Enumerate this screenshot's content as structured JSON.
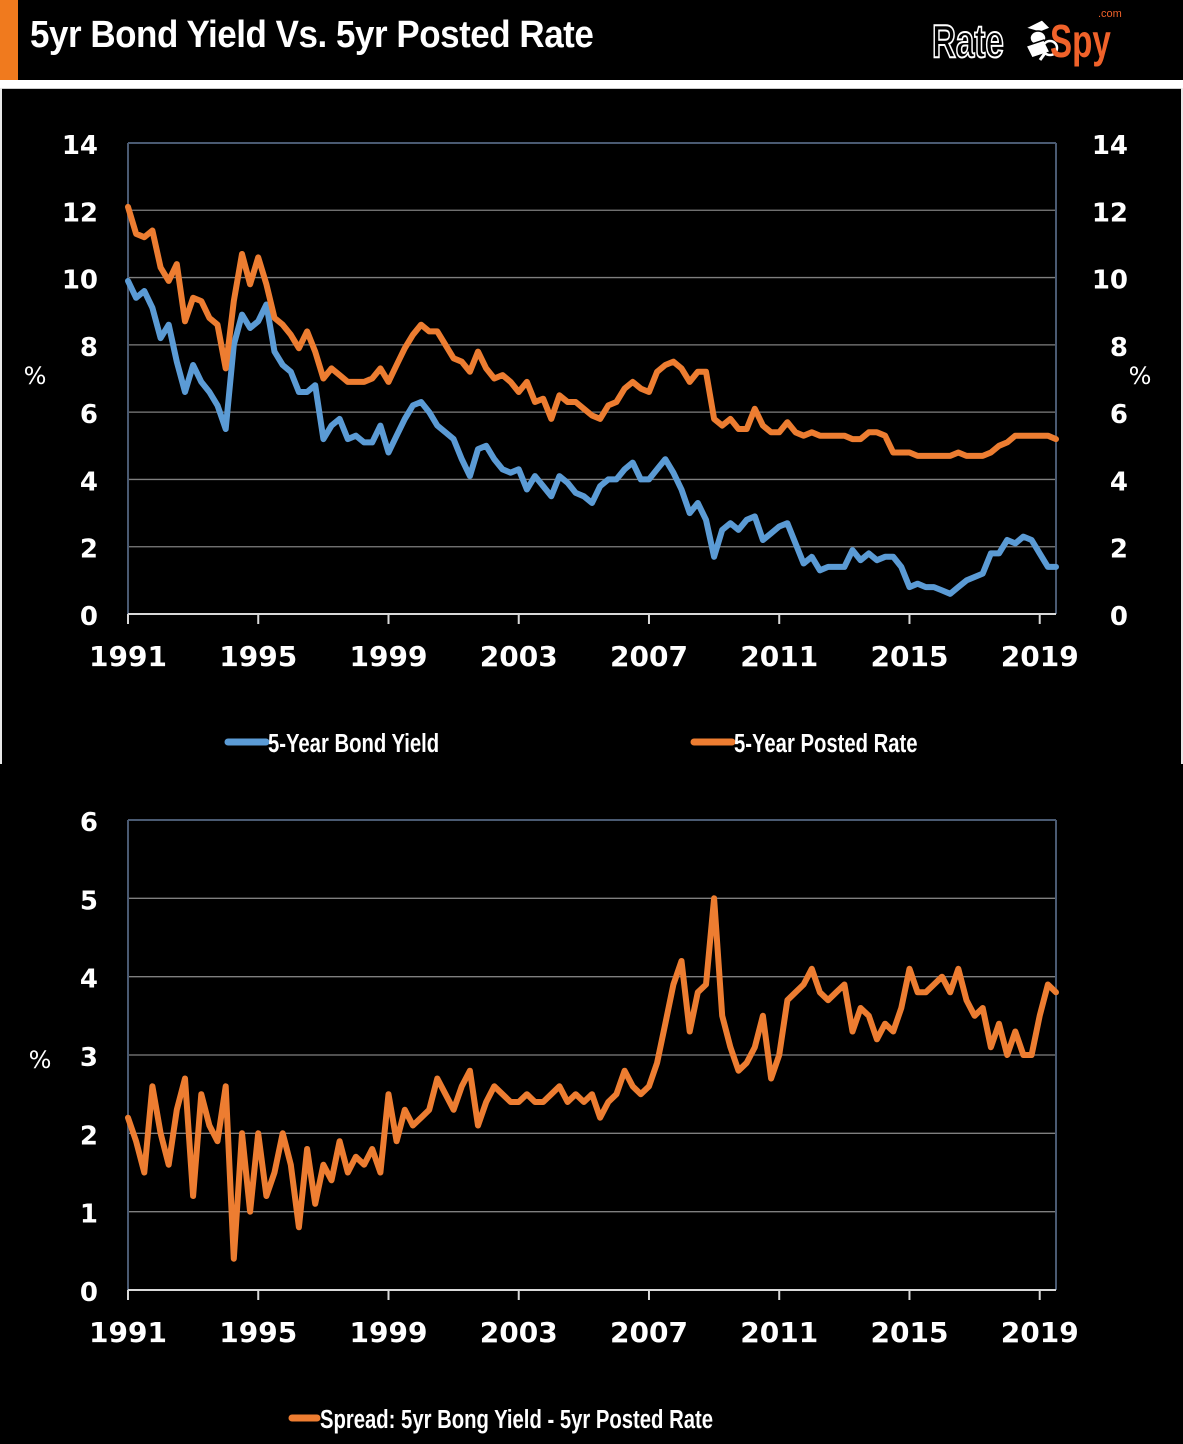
{
  "header": {
    "title": "5yr Bond Yield Vs. 5yr Posted Rate",
    "logo": {
      "part1": "Rate",
      "part2": "Spy",
      "suffix": ".com",
      "icon": "spy-magnifier-icon"
    },
    "accent_color": "#f07a1e"
  },
  "chart_data": [
    {
      "type": "line",
      "title": "",
      "xlabel": "",
      "ylabel": "%",
      "ylabel_right": "%",
      "ylim": [
        0,
        14
      ],
      "yticks": [
        "0",
        "2",
        "4",
        "6",
        "8",
        "10",
        "12",
        "14"
      ],
      "xlim": [
        1991,
        2019.5
      ],
      "xticks": [
        "1991",
        "1995",
        "1999",
        "2003",
        "2007",
        "2011",
        "2015",
        "2019"
      ],
      "grid": true,
      "legend_position": "bottom",
      "series": [
        {
          "name": "5-Year Bond Yield",
          "color": "#5b9bd5",
          "x": [
            1991.0,
            1991.25,
            1991.5,
            1991.75,
            1992.0,
            1992.25,
            1992.5,
            1992.75,
            1993.0,
            1993.25,
            1993.5,
            1993.75,
            1994.0,
            1994.25,
            1994.5,
            1994.75,
            1995.0,
            1995.25,
            1995.5,
            1995.75,
            1996.0,
            1996.25,
            1996.5,
            1996.75,
            1997.0,
            1997.25,
            1997.5,
            1997.75,
            1998.0,
            1998.25,
            1998.5,
            1998.75,
            1999.0,
            1999.25,
            1999.5,
            1999.75,
            2000.0,
            2000.25,
            2000.5,
            2000.75,
            2001.0,
            2001.25,
            2001.5,
            2001.75,
            2002.0,
            2002.25,
            2002.5,
            2002.75,
            2003.0,
            2003.25,
            2003.5,
            2003.75,
            2004.0,
            2004.25,
            2004.5,
            2004.75,
            2005.0,
            2005.25,
            2005.5,
            2005.75,
            2006.0,
            2006.25,
            2006.5,
            2006.75,
            2007.0,
            2007.25,
            2007.5,
            2007.75,
            2008.0,
            2008.25,
            2008.5,
            2008.75,
            2009.0,
            2009.25,
            2009.5,
            2009.75,
            2010.0,
            2010.25,
            2010.5,
            2010.75,
            2011.0,
            2011.25,
            2011.5,
            2011.75,
            2012.0,
            2012.25,
            2012.5,
            2012.75,
            2013.0,
            2013.25,
            2013.5,
            2013.75,
            2014.0,
            2014.25,
            2014.5,
            2014.75,
            2015.0,
            2015.25,
            2015.5,
            2015.75,
            2016.0,
            2016.25,
            2016.5,
            2016.75,
            2017.0,
            2017.25,
            2017.5,
            2017.75,
            2018.0,
            2018.25,
            2018.5,
            2018.75,
            2019.0,
            2019.25,
            2019.5
          ],
          "values": [
            9.9,
            9.4,
            9.6,
            9.1,
            8.2,
            8.6,
            7.5,
            6.6,
            7.4,
            6.9,
            6.6,
            6.2,
            5.5,
            8.0,
            8.9,
            8.5,
            8.7,
            9.2,
            7.8,
            7.4,
            7.2,
            6.6,
            6.6,
            6.8,
            5.2,
            5.6,
            5.8,
            5.2,
            5.3,
            5.1,
            5.1,
            5.6,
            4.8,
            5.3,
            5.8,
            6.2,
            6.3,
            6.0,
            5.6,
            5.4,
            5.2,
            4.6,
            4.1,
            4.9,
            5.0,
            4.6,
            4.3,
            4.2,
            4.3,
            3.7,
            4.1,
            3.8,
            3.5,
            4.1,
            3.9,
            3.6,
            3.5,
            3.3,
            3.8,
            4.0,
            4.0,
            4.3,
            4.5,
            4.0,
            4.0,
            4.3,
            4.6,
            4.2,
            3.7,
            3.0,
            3.3,
            2.8,
            1.7,
            2.5,
            2.7,
            2.5,
            2.8,
            2.9,
            2.2,
            2.4,
            2.6,
            2.7,
            2.1,
            1.5,
            1.7,
            1.3,
            1.4,
            1.4,
            1.4,
            1.9,
            1.6,
            1.8,
            1.6,
            1.7,
            1.7,
            1.4,
            0.8,
            0.9,
            0.8,
            0.8,
            0.7,
            0.6,
            0.8,
            1.0,
            1.1,
            1.2,
            1.8,
            1.8,
            2.2,
            2.1,
            2.3,
            2.2,
            1.8,
            1.4,
            1.4
          ]
        },
        {
          "name": "5-Year Posted Rate",
          "color": "#ed7d31",
          "x": [
            1991.0,
            1991.25,
            1991.5,
            1991.75,
            1992.0,
            1992.25,
            1992.5,
            1992.75,
            1993.0,
            1993.25,
            1993.5,
            1993.75,
            1994.0,
            1994.25,
            1994.5,
            1994.75,
            1995.0,
            1995.25,
            1995.5,
            1995.75,
            1996.0,
            1996.25,
            1996.5,
            1996.75,
            1997.0,
            1997.25,
            1997.5,
            1997.75,
            1998.0,
            1998.25,
            1998.5,
            1998.75,
            1999.0,
            1999.25,
            1999.5,
            1999.75,
            2000.0,
            2000.25,
            2000.5,
            2000.75,
            2001.0,
            2001.25,
            2001.5,
            2001.75,
            2002.0,
            2002.25,
            2002.5,
            2002.75,
            2003.0,
            2003.25,
            2003.5,
            2003.75,
            2004.0,
            2004.25,
            2004.5,
            2004.75,
            2005.0,
            2005.25,
            2005.5,
            2005.75,
            2006.0,
            2006.25,
            2006.5,
            2006.75,
            2007.0,
            2007.25,
            2007.5,
            2007.75,
            2008.0,
            2008.25,
            2008.5,
            2008.75,
            2009.0,
            2009.25,
            2009.5,
            2009.75,
            2010.0,
            2010.25,
            2010.5,
            2010.75,
            2011.0,
            2011.25,
            2011.5,
            2011.75,
            2012.0,
            2012.25,
            2012.5,
            2012.75,
            2013.0,
            2013.25,
            2013.5,
            2013.75,
            2014.0,
            2014.25,
            2014.5,
            2014.75,
            2015.0,
            2015.25,
            2015.5,
            2015.75,
            2016.0,
            2016.25,
            2016.5,
            2016.75,
            2017.0,
            2017.25,
            2017.5,
            2017.75,
            2018.0,
            2018.25,
            2018.5,
            2018.75,
            2019.0,
            2019.25,
            2019.5
          ],
          "values": [
            12.1,
            11.3,
            11.2,
            11.4,
            10.3,
            9.9,
            10.4,
            8.7,
            9.4,
            9.3,
            8.8,
            8.6,
            7.3,
            9.3,
            10.7,
            9.8,
            10.6,
            9.8,
            8.8,
            8.6,
            8.3,
            7.9,
            8.4,
            7.8,
            7.0,
            7.3,
            7.1,
            6.9,
            6.9,
            6.9,
            7.0,
            7.3,
            6.9,
            7.4,
            7.9,
            8.3,
            8.6,
            8.4,
            8.4,
            8.0,
            7.6,
            7.5,
            7.2,
            7.8,
            7.3,
            7.0,
            7.1,
            6.9,
            6.6,
            6.9,
            6.3,
            6.4,
            5.8,
            6.5,
            6.3,
            6.3,
            6.1,
            5.9,
            5.8,
            6.2,
            6.3,
            6.7,
            6.9,
            6.7,
            6.6,
            7.2,
            7.4,
            7.5,
            7.3,
            6.9,
            7.2,
            7.2,
            5.8,
            5.6,
            5.8,
            5.5,
            5.5,
            6.1,
            5.6,
            5.4,
            5.4,
            5.7,
            5.4,
            5.3,
            5.4,
            5.3,
            5.3,
            5.3,
            5.3,
            5.2,
            5.2,
            5.4,
            5.4,
            5.3,
            4.8,
            4.8,
            4.8,
            4.7,
            4.7,
            4.7,
            4.7,
            4.7,
            4.8,
            4.7,
            4.7,
            4.7,
            4.8,
            5.0,
            5.1,
            5.3,
            5.3,
            5.3,
            5.3,
            5.3,
            5.2
          ]
        }
      ]
    },
    {
      "type": "line",
      "title": "",
      "xlabel": "",
      "ylabel": "%",
      "ylim": [
        0,
        6
      ],
      "yticks": [
        "0",
        "1",
        "2",
        "3",
        "4",
        "5",
        "6"
      ],
      "xlim": [
        1991,
        2019.5
      ],
      "xticks": [
        "1991",
        "1995",
        "1999",
        "2003",
        "2007",
        "2011",
        "2015",
        "2019"
      ],
      "grid": true,
      "legend_position": "bottom",
      "series": [
        {
          "name": "Spread: 5yr Bong Yield - 5yr Posted Rate",
          "color": "#ed7d31",
          "x": [
            1991.0,
            1991.25,
            1991.5,
            1991.75,
            1992.0,
            1992.25,
            1992.5,
            1992.75,
            1993.0,
            1993.25,
            1993.5,
            1993.75,
            1994.0,
            1994.25,
            1994.5,
            1994.75,
            1995.0,
            1995.25,
            1995.5,
            1995.75,
            1996.0,
            1996.25,
            1996.5,
            1996.75,
            1997.0,
            1997.25,
            1997.5,
            1997.75,
            1998.0,
            1998.25,
            1998.5,
            1998.75,
            1999.0,
            1999.25,
            1999.5,
            1999.75,
            2000.0,
            2000.25,
            2000.5,
            2000.75,
            2001.0,
            2001.25,
            2001.5,
            2001.75,
            2002.0,
            2002.25,
            2002.5,
            2002.75,
            2003.0,
            2003.25,
            2003.5,
            2003.75,
            2004.0,
            2004.25,
            2004.5,
            2004.75,
            2005.0,
            2005.25,
            2005.5,
            2005.75,
            2006.0,
            2006.25,
            2006.5,
            2006.75,
            2007.0,
            2007.25,
            2007.5,
            2007.75,
            2008.0,
            2008.25,
            2008.5,
            2008.75,
            2009.0,
            2009.25,
            2009.5,
            2009.75,
            2010.0,
            2010.25,
            2010.5,
            2010.75,
            2011.0,
            2011.25,
            2011.5,
            2011.75,
            2012.0,
            2012.25,
            2012.5,
            2012.75,
            2013.0,
            2013.25,
            2013.5,
            2013.75,
            2014.0,
            2014.25,
            2014.5,
            2014.75,
            2015.0,
            2015.25,
            2015.5,
            2015.75,
            2016.0,
            2016.25,
            2016.5,
            2016.75,
            2017.0,
            2017.25,
            2017.5,
            2017.75,
            2018.0,
            2018.25,
            2018.5,
            2018.75,
            2019.0,
            2019.25,
            2019.5
          ],
          "values": [
            2.2,
            1.9,
            1.5,
            2.6,
            2.0,
            1.6,
            2.3,
            2.7,
            1.2,
            2.5,
            2.1,
            1.9,
            2.6,
            0.4,
            2.0,
            1.0,
            2.0,
            1.2,
            1.5,
            2.0,
            1.6,
            0.8,
            1.8,
            1.1,
            1.6,
            1.4,
            1.9,
            1.5,
            1.7,
            1.6,
            1.8,
            1.5,
            2.5,
            1.9,
            2.3,
            2.1,
            2.2,
            2.3,
            2.7,
            2.5,
            2.3,
            2.6,
            2.8,
            2.1,
            2.4,
            2.6,
            2.5,
            2.4,
            2.4,
            2.5,
            2.4,
            2.4,
            2.5,
            2.6,
            2.4,
            2.5,
            2.4,
            2.5,
            2.2,
            2.4,
            2.5,
            2.8,
            2.6,
            2.5,
            2.6,
            2.9,
            3.4,
            3.9,
            4.2,
            3.3,
            3.8,
            3.9,
            5.0,
            3.5,
            3.1,
            2.8,
            2.9,
            3.1,
            3.5,
            2.7,
            3.0,
            3.7,
            3.8,
            3.9,
            4.1,
            3.8,
            3.7,
            3.8,
            3.9,
            3.3,
            3.6,
            3.5,
            3.2,
            3.4,
            3.3,
            3.6,
            4.1,
            3.8,
            3.8,
            3.9,
            4.0,
            3.8,
            4.1,
            3.7,
            3.5,
            3.6,
            3.1,
            3.4,
            3.0,
            3.3,
            3.0,
            3.0,
            3.5,
            3.9,
            3.8
          ]
        }
      ]
    }
  ]
}
